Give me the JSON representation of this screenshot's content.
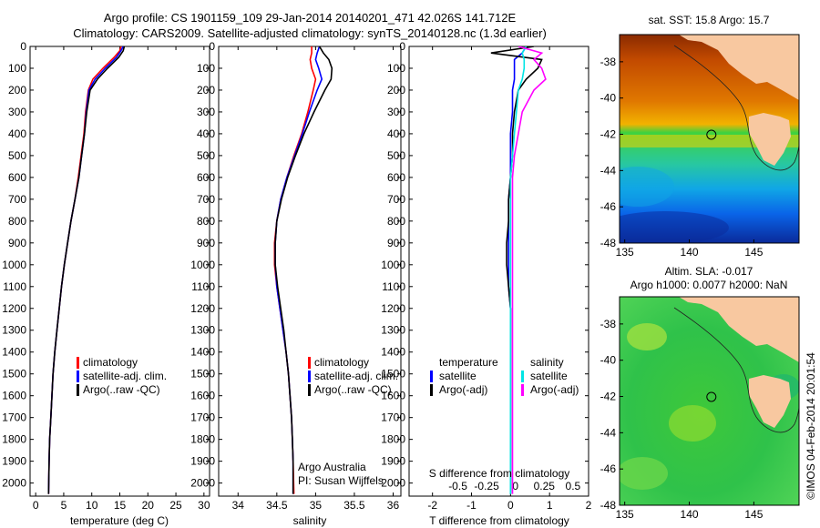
{
  "figure": {
    "title_line1": "Argo profile: CS 1901159_109 29-Jan-2014 20140201_471 42.026S 141.712E",
    "title_line2": "Climatology: CARS2009. Satellite-adjusted climatology: synTS_20140128.nc (1.3d earlier)",
    "credit_line1": "Argo Australia",
    "credit_line2": "PI: Susan Wijffels",
    "side_stamp": "©IMOS 04-Feb-2014 20:01:54"
  },
  "colors": {
    "climatology": "#ff0000",
    "satellite": "#0000ff",
    "argo": "#000000",
    "satellite_salinity": "#00e5e5",
    "argo_salinity": "#ff00ff",
    "land": "#f8c8a0"
  },
  "chart_data": [
    {
      "type": "line",
      "panel": "temperature",
      "xlabel": "temperature (deg C)",
      "xlim": [
        -1,
        31
      ],
      "ylim": [
        2060,
        0
      ],
      "xticks": [
        "0",
        "5",
        "10",
        "15",
        "20",
        "25",
        "30"
      ],
      "yticks": [
        "0",
        "100",
        "200",
        "300",
        "400",
        "500",
        "600",
        "700",
        "800",
        "900",
        "1000",
        "1100",
        "1200",
        "1300",
        "1400",
        "1500",
        "1600",
        "1700",
        "1800",
        "1900",
        "2000"
      ],
      "legend": [
        "climatology",
        "satellite-adj. clim.",
        "Argo(..raw -QC)"
      ],
      "series": [
        {
          "name": "climatology",
          "x": [
            15.2,
            15.0,
            14.0,
            12.0,
            10.2,
            9.4,
            8.9,
            8.6,
            8.1,
            7.6,
            7.0,
            6.3,
            5.7,
            5.1,
            4.6,
            4.2,
            3.8,
            3.4,
            3.1,
            2.9,
            2.7,
            2.5,
            2.4,
            2.3
          ],
          "y": [
            0,
            20,
            50,
            100,
            150,
            200,
            300,
            400,
            500,
            600,
            700,
            800,
            900,
            1000,
            1100,
            1200,
            1300,
            1400,
            1500,
            1600,
            1700,
            1800,
            1900,
            2050
          ]
        },
        {
          "name": "satellite-adj. clim.",
          "x": [
            15.6,
            15.2,
            14.4,
            12.4,
            10.6,
            9.5,
            9.0,
            8.7,
            8.2,
            7.7,
            7.0,
            6.3,
            5.7,
            5.1,
            4.6,
            4.2,
            3.8,
            3.4,
            3.1,
            2.9,
            2.7,
            2.5,
            2.4,
            2.3
          ],
          "y": [
            0,
            20,
            50,
            100,
            150,
            200,
            300,
            400,
            500,
            600,
            700,
            800,
            900,
            1000,
            1100,
            1200,
            1300,
            1400,
            1500,
            1600,
            1700,
            1800,
            1900,
            2050
          ]
        },
        {
          "name": "Argo(..raw -QC)",
          "x": [
            15.8,
            15.6,
            14.8,
            12.8,
            11.0,
            9.7,
            9.1,
            8.7,
            8.2,
            7.7,
            7.0,
            6.3,
            5.7,
            5.1,
            4.6,
            4.2,
            3.8,
            3.4,
            3.1,
            2.9,
            2.7,
            2.5,
            2.4,
            2.3
          ],
          "y": [
            0,
            20,
            50,
            100,
            150,
            200,
            300,
            400,
            500,
            600,
            700,
            800,
            900,
            1000,
            1100,
            1200,
            1300,
            1400,
            1500,
            1600,
            1700,
            1800,
            1900,
            2050
          ]
        }
      ]
    },
    {
      "type": "line",
      "panel": "salinity",
      "xlabel": "salinity",
      "xlim": [
        33.75,
        36.1
      ],
      "ylim": [
        2060,
        0
      ],
      "xticks": [
        "34",
        "34.5",
        "35",
        "35.5",
        "36"
      ],
      "legend": [
        "climatology",
        "satellite-adj. clim.",
        "Argo(..raw -QC)"
      ],
      "series": [
        {
          "name": "climatology",
          "x": [
            34.95,
            34.95,
            34.93,
            34.95,
            35.0,
            34.97,
            34.9,
            34.82,
            34.72,
            34.63,
            34.55,
            34.5,
            34.47,
            34.47,
            34.5,
            34.54,
            34.58,
            34.62,
            34.65,
            34.67,
            34.69,
            34.7,
            34.71,
            34.72
          ],
          "y": [
            0,
            30,
            60,
            100,
            150,
            200,
            300,
            400,
            500,
            600,
            700,
            800,
            900,
            1000,
            1100,
            1200,
            1300,
            1400,
            1500,
            1600,
            1700,
            1800,
            1900,
            2050
          ]
        },
        {
          "name": "satellite-adj. clim.",
          "x": [
            35.05,
            35.02,
            35.0,
            35.04,
            35.08,
            35.02,
            34.92,
            34.83,
            34.73,
            34.63,
            34.55,
            34.5,
            34.48,
            34.48,
            34.5,
            34.54,
            34.58,
            34.62,
            34.65,
            34.67,
            34.69,
            34.7,
            34.71,
            34.71
          ],
          "y": [
            0,
            30,
            60,
            100,
            150,
            200,
            300,
            400,
            500,
            600,
            700,
            800,
            900,
            1000,
            1100,
            1200,
            1300,
            1400,
            1500,
            1600,
            1700,
            1800,
            1900,
            2050
          ]
        },
        {
          "name": "Argo(..raw -QC)",
          "x": [
            35.05,
            35.1,
            35.17,
            35.21,
            35.2,
            35.12,
            34.98,
            34.85,
            34.74,
            34.64,
            34.56,
            34.5,
            34.48,
            34.48,
            34.51,
            34.55,
            34.59,
            34.62,
            34.65,
            34.67,
            34.69,
            34.7,
            34.71,
            34.71
          ],
          "y": [
            0,
            30,
            60,
            100,
            150,
            200,
            300,
            400,
            500,
            600,
            700,
            800,
            900,
            1000,
            1100,
            1200,
            1300,
            1400,
            1500,
            1600,
            1700,
            1800,
            1900,
            2050
          ]
        }
      ]
    },
    {
      "type": "line",
      "panel": "difference",
      "xlabel": "T difference from climatology",
      "xlabel_top": "S difference from climatology",
      "xlim": [
        -2.6,
        2.0
      ],
      "ylim": [
        2060,
        0
      ],
      "xticks": [
        "-2",
        "-1",
        "0",
        "1",
        "2"
      ],
      "xticks_s": [
        "-0.5",
        "-0.25",
        "0",
        "0.25",
        "0.5"
      ],
      "legend_temperature": [
        "temperature",
        "satellite",
        "Argo(-adj)"
      ],
      "legend_salinity": [
        "salinity",
        "satellite",
        "Argo(-adj)"
      ],
      "series": [
        {
          "name": "temperature satellite",
          "x": [
            0.4,
            0.3,
            0.1,
            0.1,
            0.1,
            0.05,
            0.05,
            0.0,
            0.0,
            0.0,
            -0.05,
            -0.05,
            -0.05,
            -0.05,
            -0.05,
            0.0,
            0.0,
            0.0,
            0.0,
            0.0,
            0.0,
            0.0,
            0.0
          ],
          "y": [
            0,
            30,
            60,
            100,
            150,
            200,
            300,
            400,
            500,
            600,
            700,
            800,
            900,
            1000,
            1100,
            1200,
            1300,
            1400,
            1500,
            1600,
            1700,
            1800,
            2050
          ]
        },
        {
          "name": "temperature Argo(-adj)",
          "x": [
            0.6,
            -0.5,
            0.8,
            0.7,
            0.4,
            0.2,
            0.1,
            0.05,
            0.05,
            0.0,
            -0.05,
            -0.05,
            -0.1,
            -0.1,
            -0.05,
            0.0,
            0.0,
            0.0,
            0.0,
            0.0,
            0.0,
            0.0,
            0.0
          ],
          "y": [
            0,
            30,
            60,
            100,
            150,
            200,
            300,
            400,
            500,
            600,
            700,
            800,
            900,
            1000,
            1100,
            1200,
            1300,
            1400,
            1500,
            1600,
            1700,
            1800,
            2050
          ]
        },
        {
          "name": "salinity satellite",
          "x": [
            0.4,
            0.3,
            0.35,
            0.35,
            0.3,
            0.2,
            0.15,
            0.1,
            0.05,
            0.0,
            0.0,
            0.0,
            0.0,
            0.0,
            0.0,
            0.0,
            0.0,
            0.0,
            0.0,
            0.0,
            0.0,
            0.0,
            0.0
          ],
          "y": [
            0,
            30,
            60,
            100,
            150,
            200,
            300,
            400,
            500,
            600,
            700,
            800,
            900,
            1000,
            1100,
            1200,
            1300,
            1400,
            1500,
            1600,
            1700,
            1800,
            2050
          ]
        },
        {
          "name": "salinity Argo(-adj)",
          "x": [
            0.2,
            0.8,
            0.6,
            0.8,
            0.9,
            0.6,
            0.3,
            0.2,
            0.1,
            0.05,
            0.05,
            0.05,
            0.05,
            0.05,
            0.05,
            0.05,
            0.05,
            0.05,
            0.05,
            0.05,
            0.05,
            0.05,
            0.05
          ],
          "y": [
            0,
            30,
            60,
            100,
            150,
            200,
            300,
            400,
            500,
            600,
            700,
            800,
            900,
            1000,
            1100,
            1200,
            1300,
            1400,
            1500,
            1600,
            1700,
            1800,
            2050
          ]
        }
      ]
    },
    {
      "type": "heatmap",
      "panel": "sst_map",
      "title": "sat. SST: 15.8 Argo: 15.7",
      "xlim": [
        134.6,
        148.5
      ],
      "ylim": [
        -48,
        -36.5
      ],
      "xticks": [
        "135",
        "140",
        "145"
      ],
      "yticks": [
        "-38",
        "-40",
        "-42",
        "-44",
        "-46",
        "-48"
      ],
      "marker": {
        "lon": 141.712,
        "lat": -42.026
      }
    },
    {
      "type": "heatmap",
      "panel": "sla_map",
      "title_line1": "Altim. SLA: -0.017",
      "title_line2": "Argo h1000: 0.0077 h2000: NaN",
      "xlim": [
        134.6,
        148.5
      ],
      "ylim": [
        -48,
        -36.5
      ],
      "xticks": [
        "135",
        "140",
        "145"
      ],
      "yticks": [
        "-38",
        "-40",
        "-42",
        "-44",
        "-46",
        "-48"
      ],
      "marker": {
        "lon": 141.712,
        "lat": -42.026
      }
    }
  ]
}
